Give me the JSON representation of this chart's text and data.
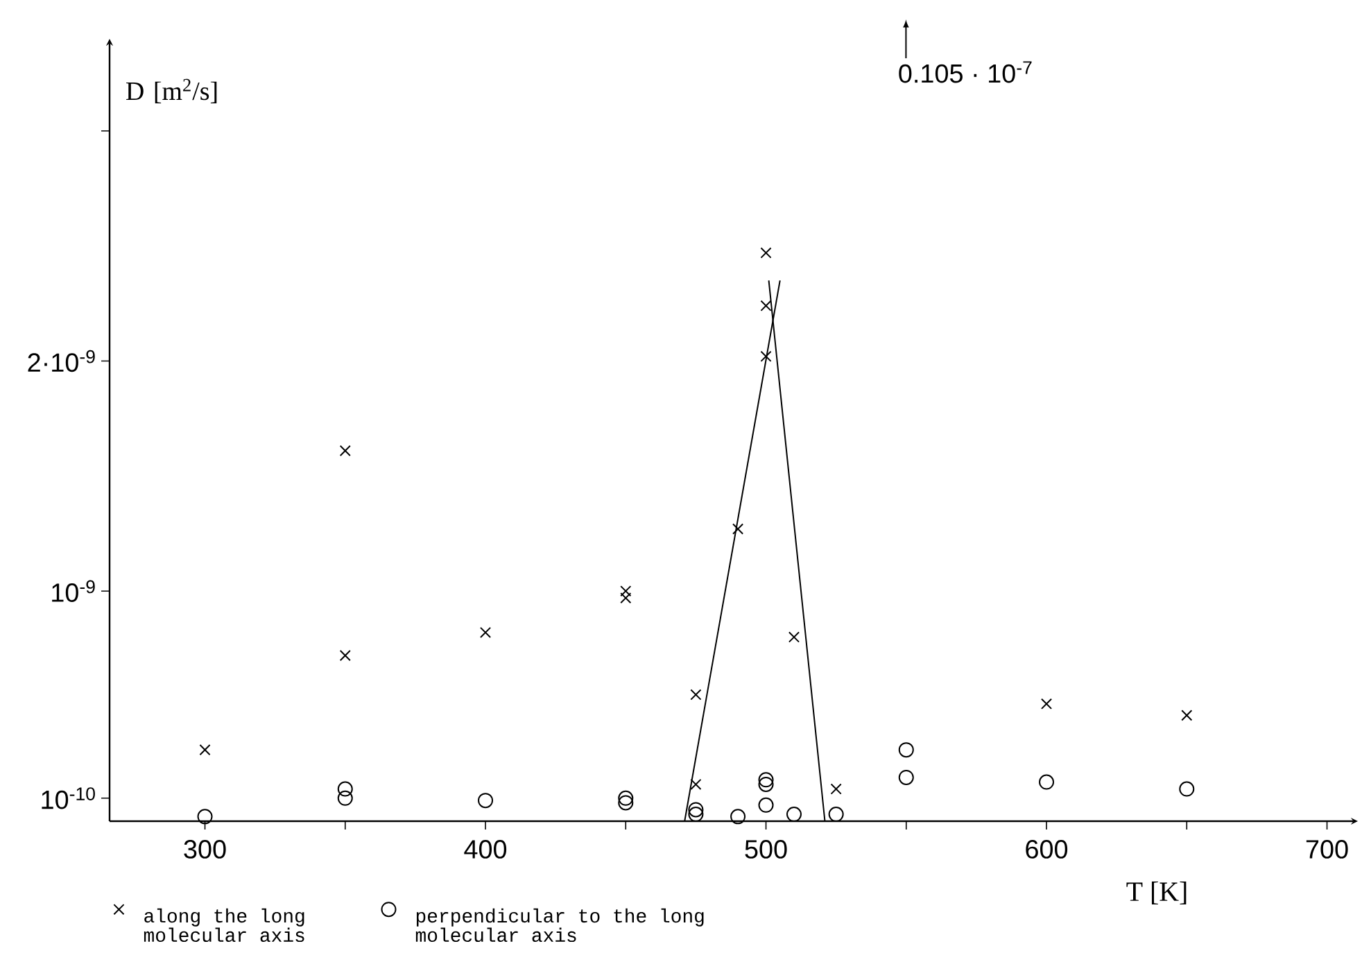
{
  "chart_data": {
    "type": "scatter",
    "xlabel": "T  [K]",
    "ylabel": "D [m$^{2}$/s]",
    "xlim": [
      266,
      711
    ],
    "ylim": [
      0,
      3.4e-09
    ],
    "xticks": [
      300,
      {
        "value": 350,
        "label": null
      },
      400,
      {
        "value": 450,
        "label": null
      },
      500,
      {
        "value": 550,
        "label": null
      },
      600,
      {
        "value": 650,
        "label": null
      },
      700
    ],
    "yticks": [
      {
        "value": 1e-10,
        "label": "10$^{-10}$"
      },
      {
        "value": 1e-09,
        "label": "10$^{-9}$"
      },
      {
        "value": 2e-09,
        "label": "2·10$^{-9}$"
      },
      {
        "value": 3e-09,
        "label": null
      }
    ],
    "legend": "bottom left",
    "grid": false,
    "annotations": [
      "0.105 · 10$^{-7}$"
    ],
    "series": [
      {
        "name": "along the long molecular axis",
        "color": "#000000",
        "marker": "cross",
        "x": [
          300,
          350,
          350,
          400,
          450,
          450,
          475,
          475,
          490,
          500,
          500,
          500,
          510,
          525,
          600,
          650
        ],
        "values": [
          3.1e-10,
          1.61e-09,
          7.2e-10,
          8.2e-10,
          1e-09,
          9.7e-10,
          5.5e-10,
          1.6e-10,
          1.27e-09,
          2.47e-09,
          2.24e-09,
          2.02e-09,
          8e-10,
          1.4e-10,
          5.1e-10,
          4.6e-10
        ]
      },
      {
        "name": "perpendicular to the long molecular axis",
        "color": "#000000",
        "marker": "circle",
        "x": [
          300,
          350,
          350,
          400,
          450,
          450,
          475,
          475,
          490,
          500,
          500,
          500,
          510,
          525,
          550,
          550,
          600,
          650
        ],
        "values": [
          2e-11,
          1.4e-10,
          1e-10,
          9e-11,
          1e-10,
          8e-11,
          5e-11,
          3e-11,
          2e-11,
          1.8e-10,
          1.6e-10,
          7e-11,
          3e-11,
          3e-11,
          3.1e-10,
          1.9e-10,
          1.7e-10,
          1.4e-10
        ]
      },
      {
        "type": "line",
        "color": "#000000",
        "line_style": "solid",
        "x": [
          471,
          505
        ],
        "values": [
          0,
          2.35e-09
        ]
      },
      {
        "type": "line",
        "color": "#000000",
        "line_style": "solid",
        "x": [
          501,
          521
        ],
        "values": [
          2.35e-09,
          0
        ]
      }
    ]
  }
}
